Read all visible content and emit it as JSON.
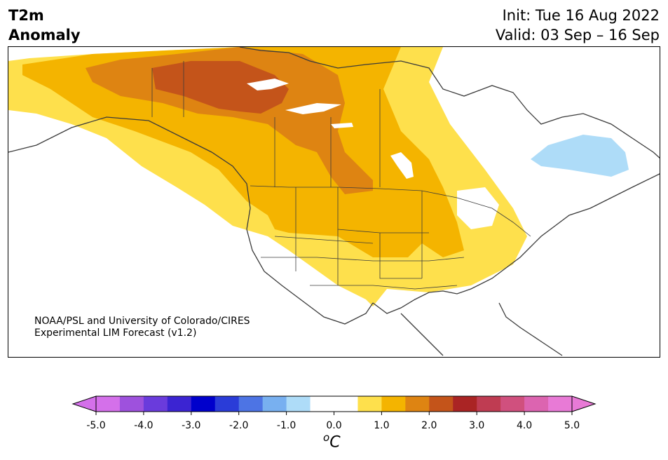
{
  "header": {
    "title_line1": "T2m",
    "title_line2": "Anomaly",
    "init": "Init: Tue 16 Aug 2022",
    "valid": "Valid: 03 Sep – 16 Sep"
  },
  "credit": {
    "line1": "NOAA/PSL and University of Colorado/CIRES",
    "line2": "Experimental LIM Forecast (v1.2)"
  },
  "colorbar": {
    "colors": [
      "#d470ea",
      "#9e51dd",
      "#6a3bdc",
      "#3b24d2",
      "#0000cc",
      "#2a3cd8",
      "#4d74e4",
      "#78b0f0",
      "#aedcf8",
      "#ffffff",
      "#ffffff",
      "#fee04c",
      "#f4b400",
      "#de8412",
      "#c4541a",
      "#aa2424",
      "#bf3c52",
      "#d0507e",
      "#dc64b0",
      "#e87ad6"
    ],
    "ticks": [
      "-5.0",
      "-4.0",
      "-3.0",
      "-2.0",
      "-1.0",
      "0.0",
      "1.0",
      "2.0",
      "3.0",
      "4.0",
      "5.0"
    ],
    "unit_symbol": "o",
    "unit_letter": "C",
    "extend": "both"
  },
  "legend_colors": {
    "warm1": "#fee04c",
    "warm2": "#f4b400",
    "warm3": "#de8412",
    "warm4": "#c4541a",
    "cool1": "#aedcf8"
  }
}
